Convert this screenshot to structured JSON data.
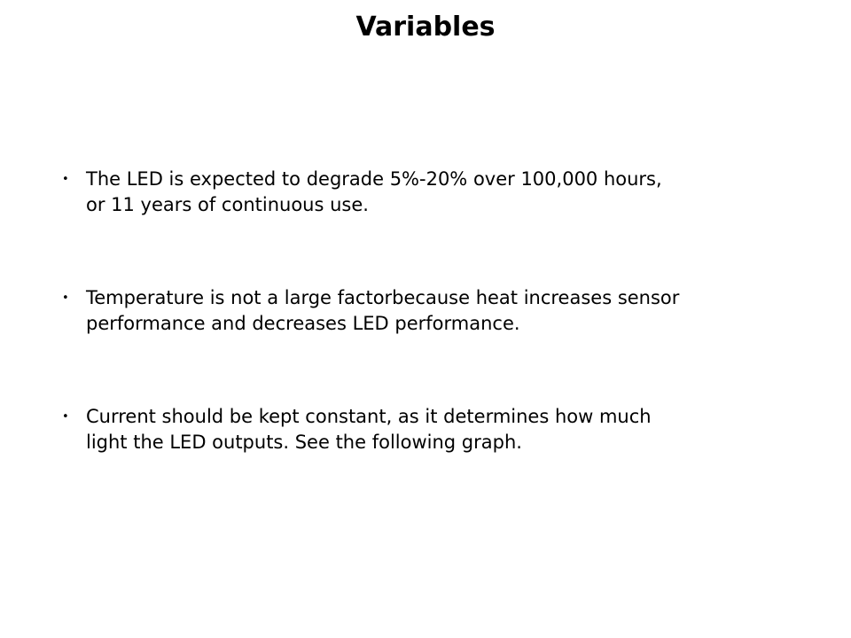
{
  "slide": {
    "title": "Variables",
    "bullet_char": "•",
    "bullets": [
      {
        "text": "The LED is expected to degrade 5%-20% over 100,000 hours, or 11 years of continuous use.",
        "lines": [
          "The LED is expected to degrade 5%-20% over 100,000 hours,",
          "or 11 years of continuous use."
        ]
      },
      {
        "text": "Temperature is not a large factorbecause heat increases sensor performance and decreases LED performance.",
        "lines": [
          "Temperature is not a large factorbecause heat increases sensor",
          "performance and decreases LED performance."
        ]
      },
      {
        "text": "Current should be kept constant, as it determines how much light the LED outputs. See the following graph.",
        "lines": [
          "Current should be kept constant, as it determines how much",
          "light the LED outputs. See the following graph."
        ]
      }
    ],
    "colors": {
      "background": "#ffffff",
      "text": "#000000"
    }
  }
}
